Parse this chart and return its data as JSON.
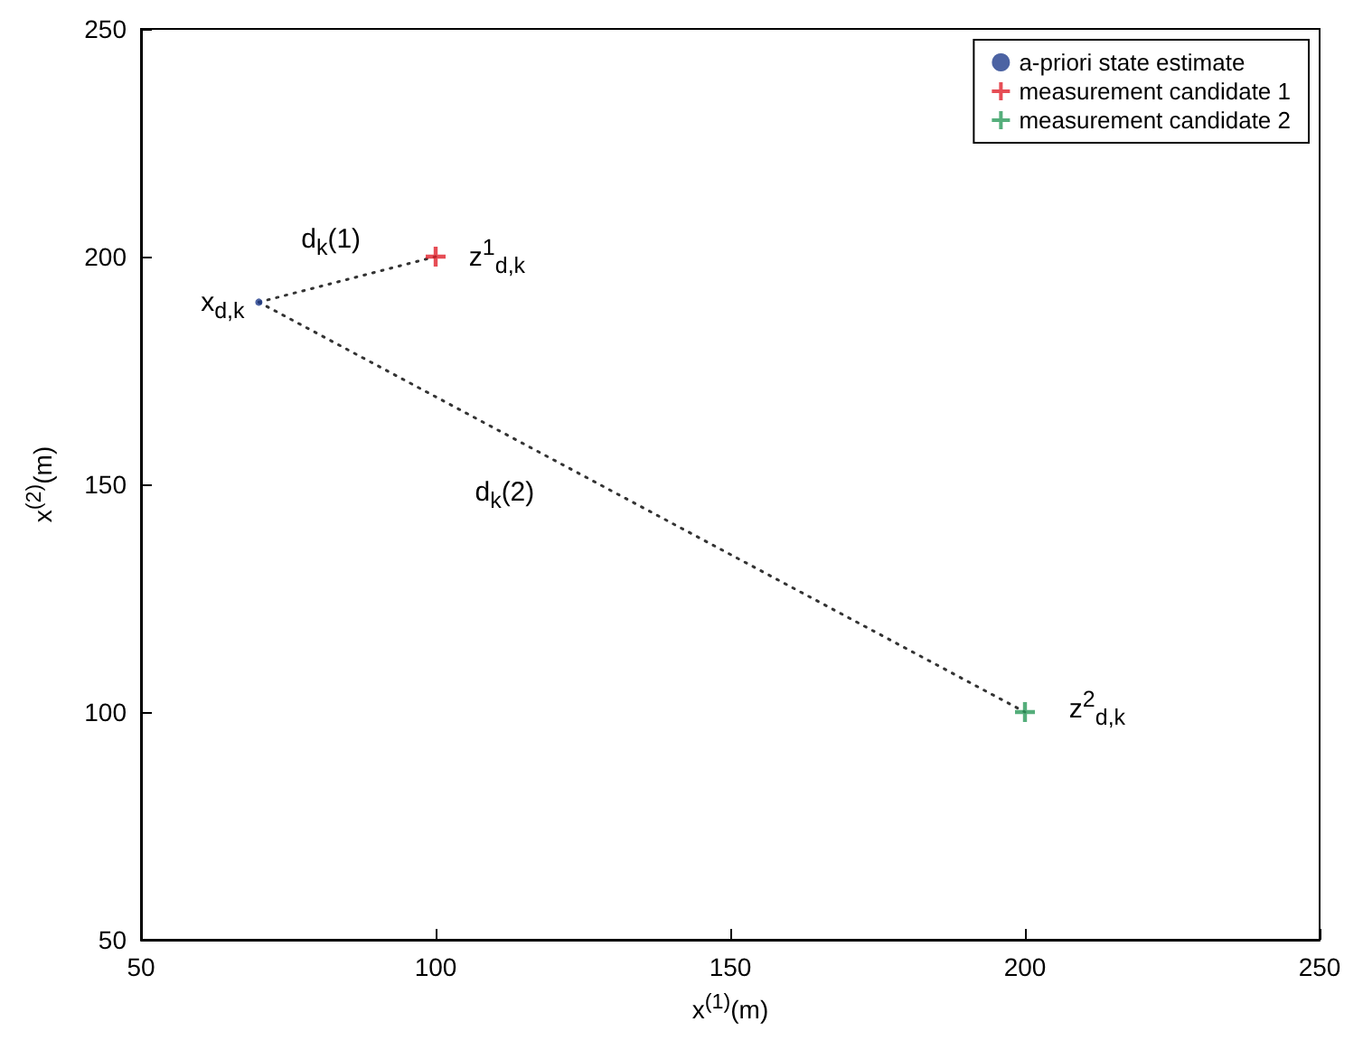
{
  "chart_data": {
    "type": "scatter",
    "xlabel": "x$^{(1)}$(m)",
    "ylabel": "x$^{(2)}$(m)",
    "xlim": [
      50,
      250
    ],
    "xticks": [
      50,
      100,
      150,
      200,
      250
    ],
    "ylim": [
      50,
      250
    ],
    "yticks": [
      50,
      100,
      150,
      200,
      250
    ],
    "grid": false,
    "legend": "top right",
    "series": [
      {
        "name": "a-priori state estimate",
        "marker": "circle",
        "color": "#1f3c8c",
        "x": [
          70
        ],
        "values": [
          190
        ]
      },
      {
        "name": "measurement candidate 1",
        "marker": "cross",
        "color": "#e0202a",
        "x": [
          100
        ],
        "values": [
          200
        ]
      },
      {
        "name": "measurement candidate 2",
        "marker": "cross",
        "color": "#2a9a5a",
        "x": [
          200
        ],
        "values": [
          100
        ]
      },
      {
        "type": "line",
        "line_style": "dotted",
        "color": "#333333",
        "x": [
          70,
          100
        ],
        "values": [
          190,
          200
        ]
      },
      {
        "type": "line",
        "line_style": "dotted",
        "color": "#333333",
        "x": [
          70,
          200
        ],
        "values": [
          190,
          100
        ]
      }
    ],
    "annotations": [
      {
        "text": "x$_{d,k}$",
        "x": 70,
        "y": 190
      },
      {
        "text": "d$_{k}$(1)",
        "x": 85,
        "y": 195
      },
      {
        "text": "z$^{1}$$_{d,k}$",
        "x": 100,
        "y": 200
      },
      {
        "text": "d$_{k}$(2)",
        "x": 120,
        "y": 155
      },
      {
        "text": "z$^{2}$$_{d,k}$",
        "x": 200,
        "y": 100
      }
    ]
  }
}
